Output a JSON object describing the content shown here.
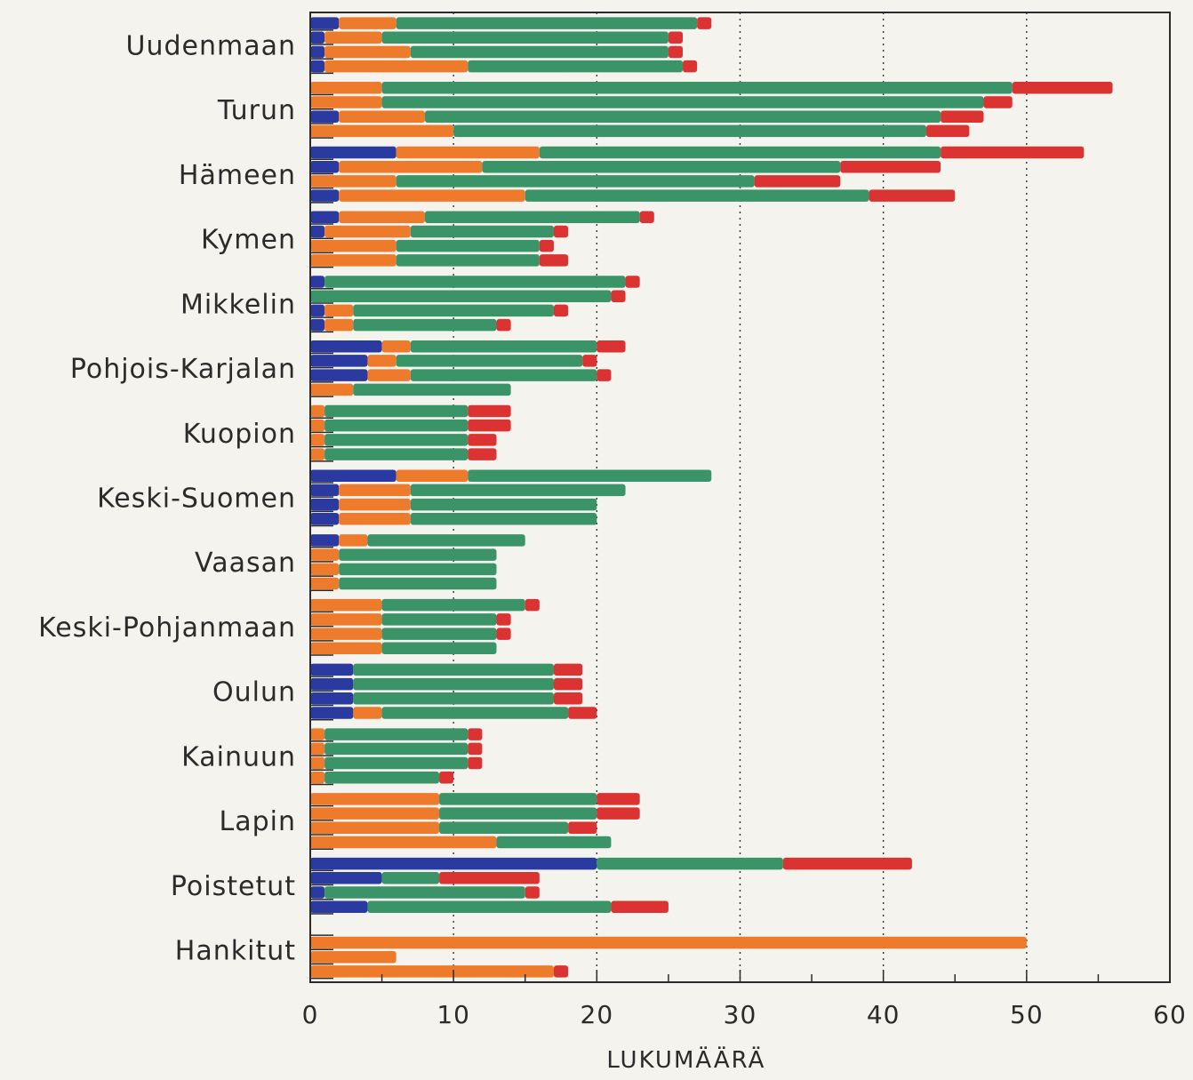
{
  "chart_data": {
    "type": "bar",
    "orientation": "horizontal",
    "stacked": true,
    "title": "",
    "xlabel": "LUKUMÄÄRÄ",
    "ylabel": "",
    "xlim": [
      0,
      60
    ],
    "xticks": [
      0,
      10,
      20,
      30,
      40,
      50,
      60
    ],
    "grid": "vertical dotted at 10, 20, 30, 40, 50",
    "legend": "none",
    "segment_colors": [
      "#2b3aa0",
      "#ee7b2c",
      "#3a9468",
      "#db3232"
    ],
    "categories": [
      {
        "label": "Uudenmaan",
        "bars": [
          [
            2,
            4,
            21,
            1
          ],
          [
            1,
            4,
            20,
            1
          ],
          [
            1,
            6,
            18,
            1
          ],
          [
            1,
            10,
            15,
            1
          ]
        ]
      },
      {
        "label": "Turun",
        "bars": [
          [
            0,
            5,
            44,
            7
          ],
          [
            0,
            5,
            42,
            2
          ],
          [
            2,
            6,
            36,
            3
          ],
          [
            0,
            10,
            33,
            3
          ]
        ]
      },
      {
        "label": "Hämeen",
        "bars": [
          [
            6,
            10,
            28,
            10
          ],
          [
            2,
            10,
            25,
            7
          ],
          [
            0,
            6,
            25,
            6
          ],
          [
            2,
            13,
            24,
            6
          ]
        ]
      },
      {
        "label": "Kymen",
        "bars": [
          [
            2,
            6,
            15,
            1
          ],
          [
            1,
            6,
            10,
            1
          ],
          [
            0,
            6,
            10,
            1
          ],
          [
            0,
            6,
            10,
            2
          ]
        ]
      },
      {
        "label": "Mikkelin",
        "bars": [
          [
            1,
            0,
            21,
            1
          ],
          [
            0,
            0,
            21,
            1
          ],
          [
            1,
            2,
            14,
            1
          ],
          [
            1,
            2,
            10,
            1
          ]
        ]
      },
      {
        "label": "Pohjois-Karjalan",
        "bars": [
          [
            5,
            2,
            13,
            2
          ],
          [
            4,
            2,
            13,
            1
          ],
          [
            4,
            3,
            13,
            1
          ],
          [
            0,
            3,
            11,
            0
          ]
        ]
      },
      {
        "label": "Kuopion",
        "bars": [
          [
            0,
            1,
            10,
            3
          ],
          [
            0,
            1,
            10,
            3
          ],
          [
            0,
            1,
            10,
            2
          ],
          [
            0,
            1,
            10,
            2
          ]
        ]
      },
      {
        "label": "Keski-Suomen",
        "bars": [
          [
            6,
            5,
            17,
            0
          ],
          [
            2,
            5,
            15,
            0
          ],
          [
            2,
            5,
            13,
            0
          ],
          [
            2,
            5,
            13,
            0
          ]
        ]
      },
      {
        "label": "Vaasan",
        "bars": [
          [
            2,
            2,
            11,
            0
          ],
          [
            0,
            2,
            11,
            0
          ],
          [
            0,
            2,
            11,
            0
          ],
          [
            0,
            2,
            11,
            0
          ]
        ]
      },
      {
        "label": "Keski-Pohjanmaan",
        "bars": [
          [
            0,
            5,
            10,
            1
          ],
          [
            0,
            5,
            8,
            1
          ],
          [
            0,
            5,
            8,
            1
          ],
          [
            0,
            5,
            8,
            0
          ]
        ]
      },
      {
        "label": "Oulun",
        "bars": [
          [
            3,
            0,
            14,
            2
          ],
          [
            3,
            0,
            14,
            2
          ],
          [
            3,
            0,
            14,
            2
          ],
          [
            3,
            2,
            13,
            2
          ]
        ]
      },
      {
        "label": "Kainuun",
        "bars": [
          [
            0,
            1,
            10,
            1
          ],
          [
            0,
            1,
            10,
            1
          ],
          [
            0,
            1,
            10,
            1
          ],
          [
            0,
            1,
            8,
            1
          ]
        ]
      },
      {
        "label": "Lapin",
        "bars": [
          [
            0,
            9,
            11,
            3
          ],
          [
            0,
            9,
            11,
            3
          ],
          [
            0,
            9,
            9,
            2
          ],
          [
            0,
            13,
            8,
            0
          ]
        ]
      },
      {
        "label": "Poistetut",
        "bars": [
          [
            20,
            0,
            13,
            9
          ],
          [
            5,
            0,
            4,
            7
          ],
          [
            1,
            0,
            14,
            1
          ],
          [
            4,
            0,
            17,
            4
          ]
        ]
      },
      {
        "label": "Hankitut",
        "bars": [
          [
            0,
            0,
            0,
            0
          ],
          [
            0,
            50,
            0,
            0
          ],
          [
            0,
            6,
            0,
            0
          ],
          [
            0,
            17,
            0,
            1
          ]
        ]
      }
    ]
  }
}
